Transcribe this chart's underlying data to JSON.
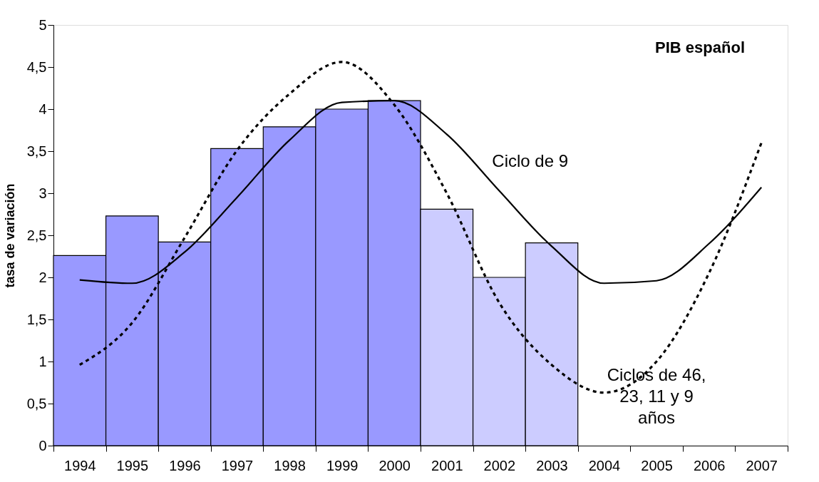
{
  "chart_data": {
    "type": "bar",
    "title": "PIB español",
    "ylabel": "tasa de variación",
    "categories": [
      "1994",
      "1995",
      "1996",
      "1997",
      "1998",
      "1999",
      "2000",
      "2001",
      "2002",
      "2003",
      "2004",
      "2005",
      "2006",
      "2007"
    ],
    "values": [
      2.26,
      2.73,
      2.42,
      3.53,
      3.79,
      4.0,
      4.1,
      2.81,
      2.0,
      2.41,
      null,
      null,
      null,
      null
    ],
    "colors": [
      "#9999ff",
      "#9999ff",
      "#9999ff",
      "#9999ff",
      "#9999ff",
      "#9999ff",
      "#9999ff",
      "#ccccff",
      "#ccccff",
      "#ccccff",
      "#ccccff",
      "#ccccff",
      "#ccccff",
      "#ccccff"
    ],
    "series": [
      {
        "type": "line",
        "name": "Ciclo de 9",
        "color": "#000000",
        "line_style": "solid",
        "values": [
          1.97,
          1.93,
          2.3,
          2.95,
          3.63,
          4.08,
          4.1,
          3.7,
          3.03,
          2.37,
          1.93,
          1.96,
          2.4,
          3.07
        ]
      },
      {
        "type": "line",
        "name": "Ciclos de 46, 23, 11 y 9 años",
        "color": "#000000",
        "line_style": "dotted",
        "values": [
          0.96,
          1.46,
          2.47,
          3.51,
          4.18,
          4.56,
          4.05,
          3.0,
          1.7,
          0.96,
          0.63,
          1.0,
          2.05,
          3.6
        ]
      }
    ],
    "ylim": [
      0,
      5
    ],
    "yticks": [
      0,
      {
        "value": 0.5,
        "label": "0,5"
      },
      1,
      {
        "value": 1.5,
        "label": "1,5"
      },
      2,
      {
        "value": 2.5,
        "label": "2,5"
      },
      3,
      {
        "value": 3.5,
        "label": "3,5"
      },
      4,
      {
        "value": 4.5,
        "label": "4,5"
      },
      5
    ],
    "grid": false,
    "legend": false,
    "marker": "none"
  }
}
